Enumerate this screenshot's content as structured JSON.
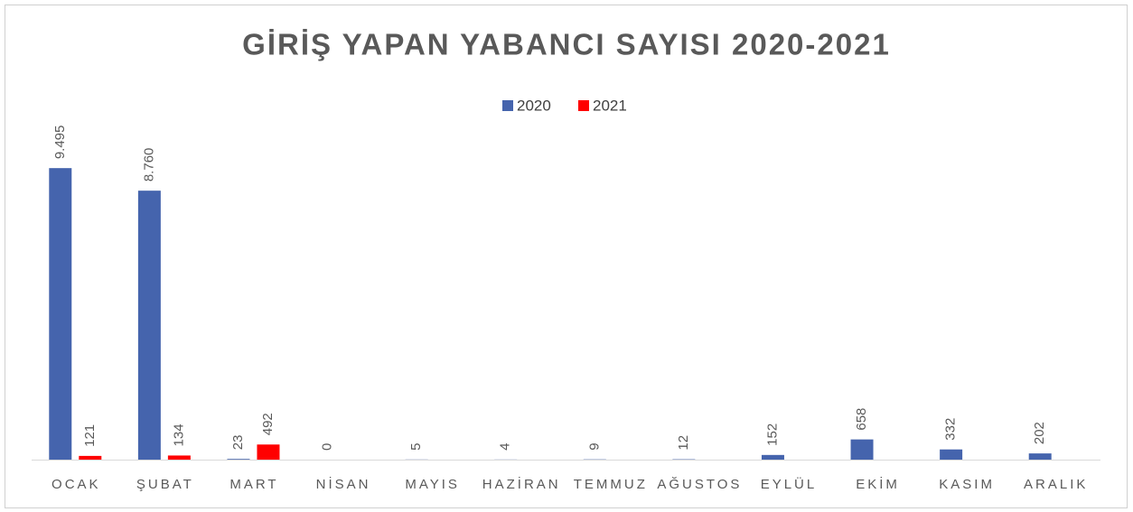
{
  "chart_data": {
    "type": "bar",
    "title": "GİRİŞ YAPAN YABANCI SAYISI 2020-2021",
    "categories": [
      "OCAK",
      "ŞUBAT",
      "MART",
      "NİSAN",
      "MAYIS",
      "HAZİRAN",
      "TEMMUZ",
      "AĞUSTOS",
      "EYLÜL",
      "EKİM",
      "KASIM",
      "ARALIK"
    ],
    "series": [
      {
        "name": "2020",
        "color": "#4564ad",
        "values": [
          9495,
          8760,
          23,
          0,
          5,
          4,
          9,
          12,
          152,
          658,
          332,
          202
        ],
        "value_labels": [
          "9.495",
          "8.760",
          "23",
          "0",
          "5",
          "4",
          "9",
          "12",
          "152",
          "658",
          "332",
          "202"
        ]
      },
      {
        "name": "2021",
        "color": "#ff0000",
        "values": [
          121,
          134,
          492,
          null,
          null,
          null,
          null,
          null,
          null,
          null,
          null,
          null
        ],
        "value_labels": [
          "121",
          "134",
          "492",
          null,
          null,
          null,
          null,
          null,
          null,
          null,
          null,
          null
        ]
      }
    ],
    "ylim": [
      0,
      10000
    ],
    "legend": "top"
  }
}
